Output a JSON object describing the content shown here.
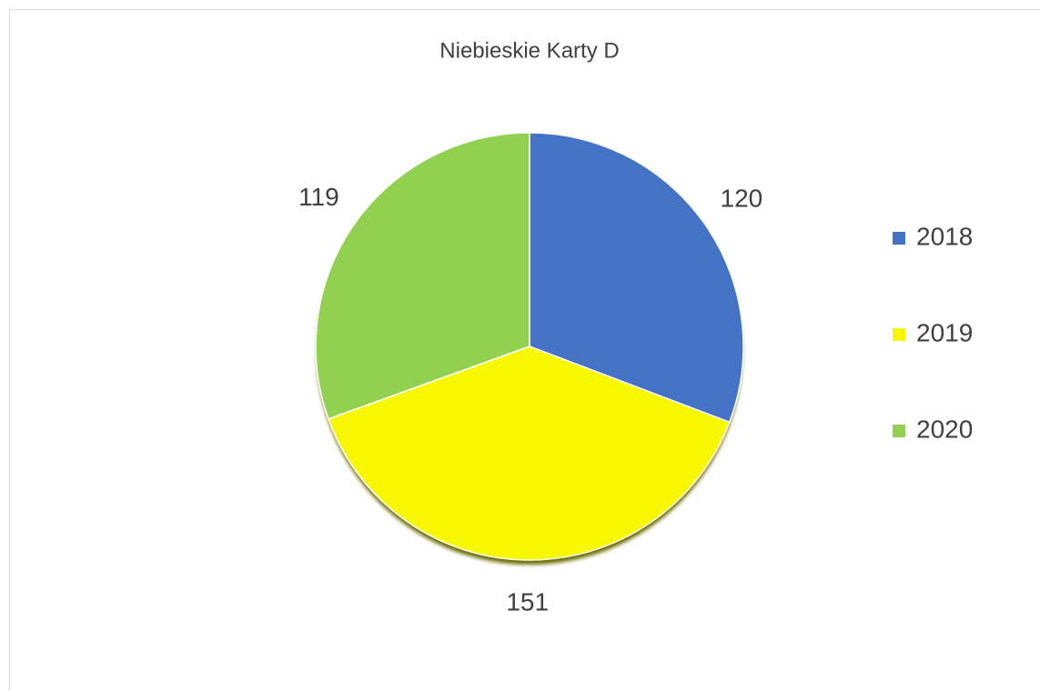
{
  "chart_data": {
    "type": "pie",
    "title": "Niebieskie Karty D",
    "categories": [
      "2018",
      "2019",
      "2020"
    ],
    "values": [
      120,
      151,
      119
    ],
    "colors": [
      "#4472c4",
      "#f7f700",
      "#92d050"
    ],
    "legend": "right"
  }
}
